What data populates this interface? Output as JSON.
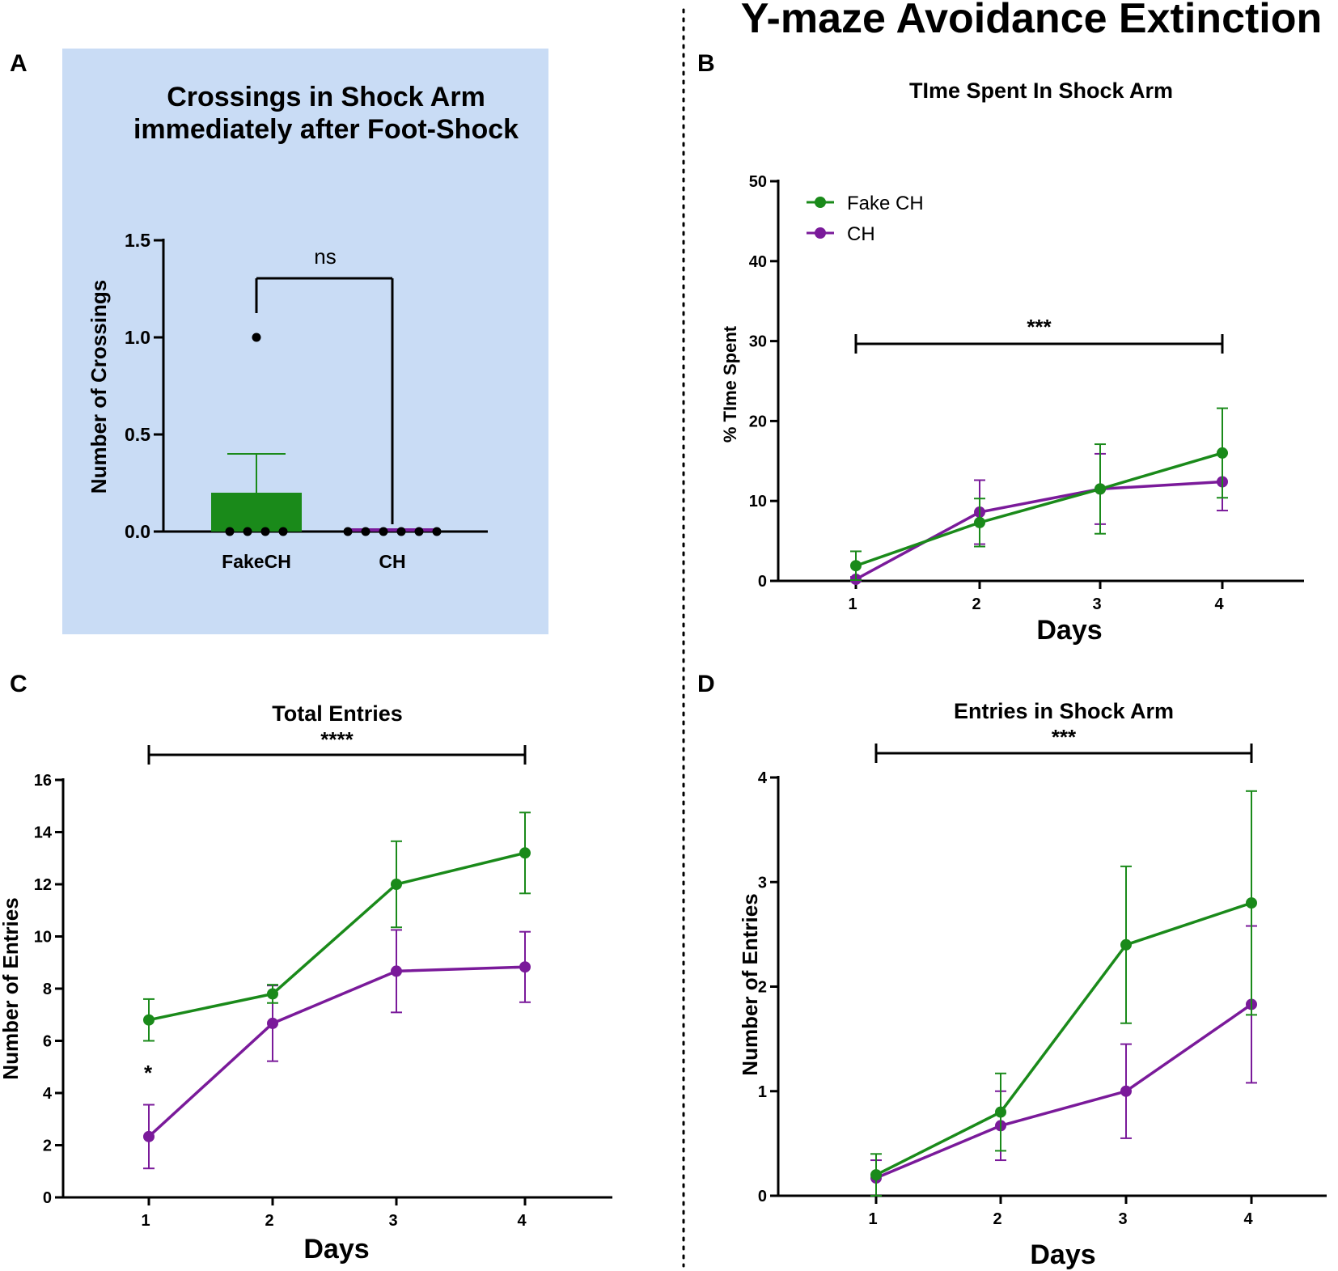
{
  "figure_title": "Y-maze Avoidance Extinction",
  "colors": {
    "fake_ch": "#1a8a1a",
    "ch": "#7a1a9a",
    "panel_a_bg": "#c9dcf5",
    "axis": "#000000"
  },
  "chart_data": [
    {
      "panel": "A",
      "type": "bar",
      "title_lines": [
        "Crossings in Shock  Arm",
        "immediately after Foot-Shock"
      ],
      "ylabel": "Number of Crossings",
      "xlabel": "",
      "ylim": [
        0,
        1.5
      ],
      "yticks": [
        0.0,
        0.5,
        1.0,
        1.5
      ],
      "ytick_labels": [
        "0.0",
        "0.5",
        "1.0",
        "1.5"
      ],
      "categories": [
        "FakeCH",
        "CH"
      ],
      "values": [
        0.2,
        0.0
      ],
      "errors": [
        0.2,
        0.0
      ],
      "points": [
        [
          0,
          0,
          0,
          0,
          1
        ],
        [
          0,
          0,
          0,
          0,
          0,
          0
        ]
      ],
      "significance": "ns"
    },
    {
      "panel": "B",
      "type": "line",
      "title": "TIme Spent In Shock Arm",
      "ylabel": "% TIme Spent",
      "xlabel": "Days",
      "ylim": [
        0,
        50
      ],
      "yticks": [
        0,
        10,
        20,
        30,
        40,
        50
      ],
      "ytick_labels": [
        "0",
        "10",
        "20",
        "30",
        "40",
        "50"
      ],
      "x": [
        1,
        2,
        3,
        4
      ],
      "xtick_labels": [
        "1",
        "2",
        "3",
        "4"
      ],
      "series": [
        {
          "name": "Fake CH",
          "key": "fake_ch",
          "values": [
            1.9,
            7.3,
            11.5,
            16.0
          ],
          "errors": [
            1.8,
            3.0,
            5.6,
            5.6
          ]
        },
        {
          "name": "CH",
          "key": "ch",
          "values": [
            0.2,
            8.6,
            11.5,
            12.4
          ],
          "errors": [
            0.3,
            4.0,
            4.4,
            3.6
          ]
        }
      ],
      "legend": [
        "Fake CH",
        "CH"
      ],
      "legend_position": "top-left",
      "significance": "***"
    },
    {
      "panel": "C",
      "type": "line",
      "title": "Total Entries",
      "ylabel": "Number of Entries",
      "xlabel": "Days",
      "ylim": [
        0,
        16
      ],
      "yticks": [
        0,
        2,
        4,
        6,
        8,
        10,
        12,
        14,
        16
      ],
      "ytick_labels": [
        "0",
        "2",
        "4",
        "6",
        "8",
        "10",
        "12",
        "14",
        "16"
      ],
      "x": [
        1,
        2,
        3,
        4
      ],
      "xtick_labels": [
        "1",
        "2",
        "3",
        "4"
      ],
      "series": [
        {
          "name": "Fake CH",
          "key": "fake_ch",
          "values": [
            6.8,
            7.8,
            12.0,
            13.2
          ],
          "errors": [
            0.8,
            0.35,
            1.65,
            1.55
          ]
        },
        {
          "name": "CH",
          "key": "ch",
          "values": [
            2.33,
            6.67,
            8.67,
            8.83
          ],
          "errors": [
            1.22,
            1.45,
            1.58,
            1.35
          ]
        }
      ],
      "significance": "****",
      "point_annotation": "*"
    },
    {
      "panel": "D",
      "type": "line",
      "title": "Entries in Shock  Arm",
      "ylabel": "Number of Entries",
      "xlabel": "Days",
      "ylim": [
        0,
        4
      ],
      "yticks": [
        0,
        1,
        2,
        3,
        4
      ],
      "ytick_labels": [
        "0",
        "1",
        "2",
        "3",
        "4"
      ],
      "x": [
        1,
        2,
        3,
        4
      ],
      "xtick_labels": [
        "1",
        "2",
        "3",
        "4"
      ],
      "series": [
        {
          "name": "Fake CH",
          "key": "fake_ch",
          "values": [
            0.2,
            0.8,
            2.4,
            2.8
          ],
          "errors": [
            0.2,
            0.37,
            0.75,
            1.07
          ]
        },
        {
          "name": "CH",
          "key": "ch",
          "values": [
            0.17,
            0.67,
            1.0,
            1.83
          ],
          "errors": [
            0.17,
            0.33,
            0.45,
            0.75
          ]
        }
      ],
      "significance": "***"
    }
  ]
}
